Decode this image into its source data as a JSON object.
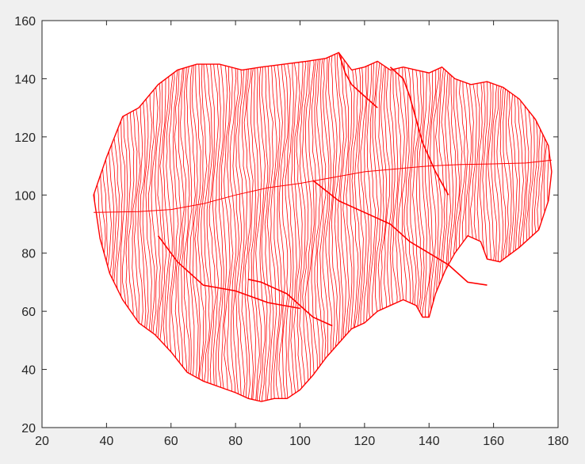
{
  "chart_data": {
    "type": "line",
    "title": "",
    "xlabel": "",
    "ylabel": "",
    "xlim": [
      20,
      180
    ],
    "ylim": [
      20,
      160
    ],
    "x_ticks": [
      20,
      40,
      60,
      80,
      100,
      120,
      140,
      160,
      180
    ],
    "y_ticks": [
      20,
      40,
      60,
      80,
      100,
      120,
      140,
      160
    ],
    "grid": false,
    "legend": "none",
    "colors": {
      "series": "#ff0000",
      "axes": "#262626",
      "plot_bg": "#ffffff",
      "figure_bg": "#f0f0f0"
    },
    "outline": {
      "x": [
        36,
        40,
        45,
        50,
        56,
        62,
        68,
        75,
        82,
        88,
        95,
        102,
        108,
        112,
        116,
        120,
        124,
        128,
        132,
        136,
        140,
        144,
        148,
        153,
        158,
        163,
        168,
        173,
        177,
        178,
        177,
        174,
        168,
        162,
        158,
        156,
        152,
        148,
        145,
        142,
        140,
        138,
        136,
        132,
        128,
        124,
        120,
        116,
        112,
        108,
        104,
        100,
        96,
        92,
        88,
        84,
        80,
        75,
        70,
        65,
        60,
        55,
        50,
        45,
        41,
        38,
        36
      ],
      "y": [
        100,
        113,
        127,
        130,
        138,
        143,
        145,
        145,
        143,
        144,
        145,
        146,
        147,
        149,
        143,
        144,
        146,
        143,
        144,
        143,
        142,
        144,
        140,
        138,
        139,
        137,
        133,
        126,
        117,
        108,
        98,
        88,
        82,
        77,
        78,
        84,
        86,
        80,
        74,
        66,
        58,
        58,
        62,
        64,
        62,
        60,
        56,
        54,
        49,
        44,
        38,
        33,
        30,
        30,
        29,
        30,
        32,
        34,
        36,
        39,
        46,
        52,
        56,
        64,
        73,
        85,
        100
      ]
    },
    "guide_line": {
      "x": [
        36,
        50,
        60,
        70,
        80,
        90,
        100,
        110,
        120,
        130,
        140,
        150,
        160,
        170,
        178
      ],
      "y": [
        94,
        94.3,
        95,
        97,
        100,
        102.5,
        104,
        106,
        108,
        109,
        110,
        110.5,
        110.7,
        111,
        112
      ]
    },
    "inner_boundaries": [
      {
        "x": [
          56,
          62,
          70,
          80,
          90,
          100
        ],
        "y": [
          86,
          77,
          69,
          67,
          63,
          61
        ]
      },
      {
        "x": [
          104,
          112,
          120,
          128,
          134,
          140,
          146,
          152,
          158
        ],
        "y": [
          105,
          98,
          94,
          90,
          84,
          80,
          76,
          70,
          69
        ]
      },
      {
        "x": [
          84,
          88,
          92,
          96,
          100,
          104,
          110
        ],
        "y": [
          71,
          70,
          68,
          66,
          62,
          58,
          55
        ]
      },
      {
        "x": [
          112,
          114,
          116,
          118,
          120,
          124
        ],
        "y": [
          149,
          142,
          138,
          136,
          134,
          130
        ]
      },
      {
        "x": [
          128,
          132,
          134,
          136,
          138,
          142,
          146
        ],
        "y": [
          144,
          140,
          134,
          126,
          118,
          108,
          100
        ]
      }
    ]
  }
}
